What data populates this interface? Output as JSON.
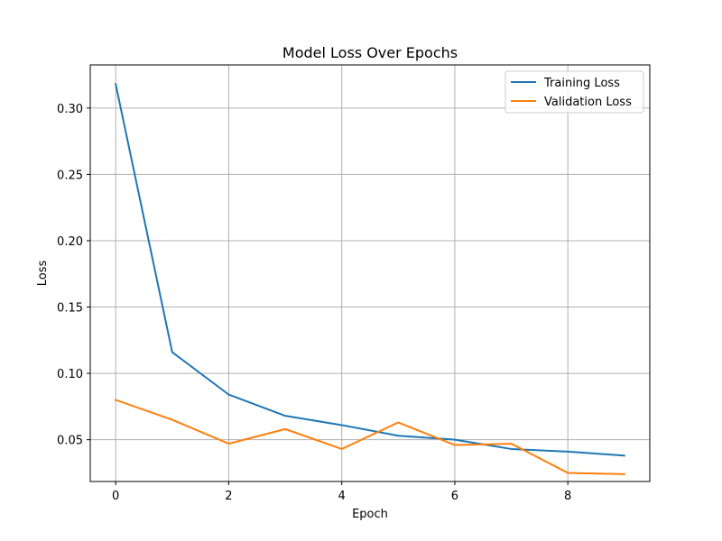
{
  "chart_data": {
    "type": "line",
    "title": "Model Loss Over Epochs",
    "xlabel": "Epoch",
    "ylabel": "Loss",
    "x": [
      0,
      1,
      2,
      3,
      4,
      5,
      6,
      7,
      8,
      9
    ],
    "xlim": [
      -0.45,
      9.45
    ],
    "ylim": [
      0.0185,
      0.3325
    ],
    "xticks": [
      0,
      2,
      4,
      6,
      8
    ],
    "xtick_labels": [
      "0",
      "2",
      "4",
      "6",
      "8"
    ],
    "yticks": [
      0.05,
      0.1,
      0.15,
      0.2,
      0.25,
      0.3
    ],
    "ytick_labels": [
      "0.05",
      "0.10",
      "0.15",
      "0.20",
      "0.25",
      "0.30"
    ],
    "grid": true,
    "legend_position": "top-right",
    "series": [
      {
        "name": "Training Loss",
        "color": "#1f77b4",
        "values": [
          0.318,
          0.116,
          0.084,
          0.068,
          0.061,
          0.053,
          0.05,
          0.043,
          0.041,
          0.038
        ]
      },
      {
        "name": "Validation Loss",
        "color": "#ff7f0e",
        "values": [
          0.08,
          0.065,
          0.047,
          0.058,
          0.043,
          0.063,
          0.046,
          0.047,
          0.025,
          0.024
        ]
      }
    ]
  }
}
